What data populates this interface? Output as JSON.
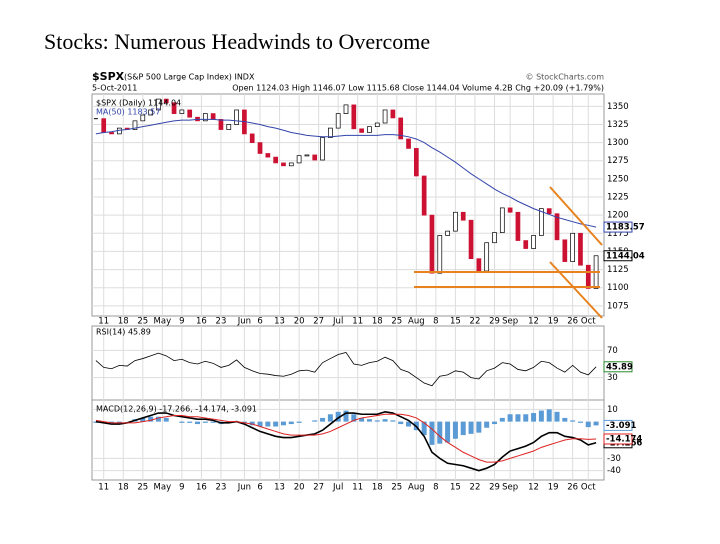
{
  "chart_data": {
    "type": "candlestick",
    "title": "Stocks: Numerous Headwinds to Overcome",
    "symbol": "$SPX",
    "symbol_name": "(S&P 500 Large Cap Index) INDX",
    "source": "© StockCharts.com",
    "date": "5-Oct-2011",
    "quote": "Open 1124.03 High 1146.07 Low 1115.68 Close 1144.04 Volume 4.2B Chg +20.09 (+1.79%)",
    "legend": [
      "$SPX (Daily) 1144.04",
      "MA(50) 1183.57"
    ],
    "xticks": [
      {
        "value": 1,
        "label": "11"
      },
      {
        "value": 3.5,
        "label": "18"
      },
      {
        "value": 6,
        "label": "25"
      },
      {
        "value": 8.5,
        "label": "May"
      },
      {
        "value": 11,
        "label": "9"
      },
      {
        "value": 13.5,
        "label": "16"
      },
      {
        "value": 16,
        "label": "23"
      },
      {
        "value": 19,
        "label": "Jun"
      },
      {
        "value": 21,
        "label": "6"
      },
      {
        "value": 23.5,
        "label": "13"
      },
      {
        "value": 26,
        "label": "20"
      },
      {
        "value": 28.5,
        "label": "27"
      },
      {
        "value": 31,
        "label": "Jul"
      },
      {
        "value": 33.5,
        "label": "11"
      },
      {
        "value": 36,
        "label": "18"
      },
      {
        "value": 38.5,
        "label": "25"
      },
      {
        "value": 41,
        "label": "Aug"
      },
      {
        "value": 43.5,
        "label": "8"
      },
      {
        "value": 46,
        "label": "15"
      },
      {
        "value": 48.5,
        "label": "22"
      },
      {
        "value": 51,
        "label": "29"
      },
      {
        "value": 53,
        "label": "Sep"
      },
      {
        "value": 56,
        "label": "12"
      },
      {
        "value": 58.5,
        "label": "19"
      },
      {
        "value": 61,
        "label": "26"
      },
      {
        "value": 63,
        "label": "Oct"
      }
    ],
    "ylim": [
      1061,
      1367
    ],
    "yticks": [
      1075,
      1100,
      1125,
      1150,
      1175,
      1200,
      1225,
      1250,
      1275,
      1300,
      1325,
      1350
    ],
    "close": [
      1333,
      1314,
      1312,
      1320,
      1318,
      1330,
      1338,
      1345,
      1360,
      1355,
      1340,
      1345,
      1335,
      1330,
      1340,
      1332,
      1318,
      1325,
      1345,
      1312,
      1300,
      1285,
      1280,
      1272,
      1268,
      1272,
      1282,
      1283,
      1276,
      1307,
      1320,
      1340,
      1352,
      1319,
      1314,
      1322,
      1327,
      1345,
      1334,
      1305,
      1292,
      1254,
      1200,
      1120,
      1172,
      1178,
      1204,
      1193,
      1140,
      1123,
      1162,
      1176,
      1210,
      1204,
      1165,
      1154,
      1172,
      1209,
      1202,
      1166,
      1136,
      1175,
      1131,
      1099,
      1144.04
    ],
    "ma": [
      1312,
      1314,
      1315,
      1317,
      1318,
      1320,
      1322,
      1324,
      1326,
      1328,
      1330,
      1331,
      1331,
      1332,
      1332,
      1332,
      1331,
      1331,
      1330,
      1329,
      1327,
      1325,
      1322,
      1320,
      1317,
      1314,
      1312,
      1310,
      1309,
      1308,
      1308,
      1309,
      1310,
      1310,
      1310,
      1310,
      1310,
      1311,
      1311,
      1310,
      1308,
      1305,
      1300,
      1293,
      1287,
      1280,
      1273,
      1265,
      1257,
      1250,
      1243,
      1236,
      1230,
      1225,
      1219,
      1214,
      1209,
      1205,
      1201,
      1197,
      1194,
      1191,
      1188,
      1186,
      1183.57
    ],
    "up_color": "#ffffff",
    "down_color": "#cc1133",
    "ma_color": "#3344aa",
    "rsi": {
      "label": "RSI(14) 45.89",
      "ylim": [
        0,
        100
      ],
      "yticks": [
        70,
        30
      ],
      "color": "#000000",
      "values": [
        55,
        45,
        43,
        48,
        47,
        55,
        58,
        62,
        66,
        62,
        55,
        57,
        52,
        50,
        54,
        51,
        45,
        48,
        56,
        45,
        40,
        36,
        35,
        33,
        32,
        35,
        40,
        41,
        38,
        52,
        58,
        64,
        67,
        50,
        48,
        52,
        54,
        60,
        55,
        42,
        38,
        30,
        22,
        18,
        32,
        34,
        40,
        38,
        30,
        28,
        40,
        44,
        52,
        50,
        42,
        40,
        45,
        54,
        52,
        44,
        38,
        48,
        38,
        34,
        45.89
      ]
    },
    "macd": {
      "label": "MACD(12,26,9) -17.266, -14.174, -3.091",
      "ylim": [
        -46,
        16
      ],
      "yticks": [
        10,
        -30,
        -40
      ],
      "series": [
        {
          "name": "MACD",
          "color": "#000000",
          "values": [
            0,
            -1,
            -2,
            -2,
            -1,
            1,
            3,
            5,
            7,
            7,
            5,
            4,
            3,
            2,
            2,
            1,
            -1,
            -1,
            0,
            -2,
            -5,
            -8,
            -10,
            -12,
            -13,
            -13,
            -12,
            -11,
            -10,
            -7,
            -2,
            3,
            7,
            7,
            6,
            6,
            6,
            8,
            7,
            4,
            1,
            -4,
            -12,
            -25,
            -30,
            -34,
            -35,
            -36,
            -38,
            -40,
            -38,
            -35,
            -29,
            -24,
            -22,
            -20,
            -17,
            -12,
            -9,
            -9,
            -12,
            -13,
            -15,
            -19,
            -17.266
          ]
        },
        {
          "name": "Signal",
          "color": "#dd2222",
          "values": [
            1,
            0,
            -1,
            -1,
            -1,
            -1,
            0,
            1,
            3,
            4,
            5,
            5,
            4,
            4,
            3,
            2,
            1,
            0,
            0,
            -1,
            -2,
            -4,
            -6,
            -8,
            -10,
            -11,
            -11,
            -11,
            -11,
            -10,
            -8,
            -5,
            -2,
            1,
            3,
            4,
            5,
            6,
            6,
            6,
            5,
            3,
            -1,
            -6,
            -12,
            -17,
            -21,
            -25,
            -28,
            -31,
            -33,
            -33,
            -32,
            -30,
            -28,
            -26,
            -24,
            -21,
            -19,
            -17,
            -15,
            -14,
            -14,
            -14.5,
            -14.174
          ]
        },
        {
          "name": "Histogram",
          "color": "#5b9bd5",
          "values": [
            -1,
            -1,
            -1,
            -1,
            0,
            2,
            3,
            4,
            4,
            3,
            0,
            -1,
            -1,
            -2,
            -1,
            -1,
            -2,
            -1,
            0,
            -1,
            -3,
            -4,
            -4,
            -4,
            -3,
            -2,
            -1,
            0,
            1,
            3,
            6,
            8,
            9,
            6,
            3,
            2,
            1,
            2,
            1,
            -2,
            -4,
            -7,
            -11,
            -19,
            -18,
            -17,
            -14,
            -11,
            -10,
            -9,
            -5,
            -2,
            3,
            6,
            6,
            6,
            7,
            9,
            10,
            8,
            3,
            1,
            -1,
            -4.5,
            -3.091
          ]
        }
      ]
    }
  }
}
